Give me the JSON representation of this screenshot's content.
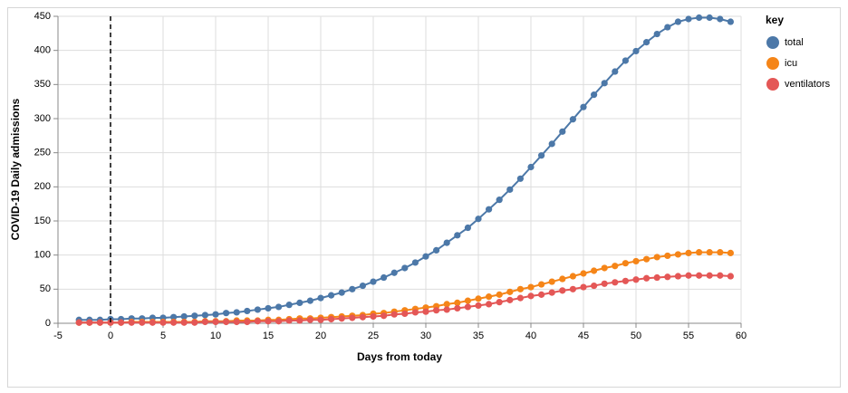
{
  "chart_data": {
    "type": "line",
    "x_label": "Days from today",
    "y_label": "COVID-19 Daily admissions",
    "legend_title": "key",
    "x": [
      -3,
      -2,
      -1,
      0,
      1,
      2,
      3,
      4,
      5,
      6,
      7,
      8,
      9,
      10,
      11,
      12,
      13,
      14,
      15,
      16,
      17,
      18,
      19,
      20,
      21,
      22,
      23,
      24,
      25,
      26,
      27,
      28,
      29,
      30,
      31,
      32,
      33,
      34,
      35,
      36,
      37,
      38,
      39,
      40,
      41,
      42,
      43,
      44,
      45,
      46,
      47,
      48,
      49,
      50,
      51,
      52,
      53,
      54,
      55,
      56,
      57,
      58,
      59
    ],
    "series": [
      {
        "name": "total",
        "color": "#4c78a8",
        "values": [
          5,
          5,
          5,
          6,
          6,
          7,
          7,
          8,
          8,
          9,
          10,
          11,
          12,
          13,
          15,
          16,
          18,
          20,
          22,
          24,
          27,
          30,
          33,
          37,
          41,
          45,
          50,
          55,
          61,
          67,
          74,
          81,
          89,
          98,
          107,
          118,
          129,
          140,
          153,
          167,
          181,
          196,
          212,
          229,
          246,
          263,
          281,
          299,
          317,
          335,
          352,
          369,
          385,
          399,
          412,
          424,
          434,
          442,
          446,
          448,
          448,
          446,
          442
        ]
      },
      {
        "name": "icu",
        "color": "#f58518",
        "values": [
          1,
          1,
          1,
          1,
          1,
          2,
          2,
          2,
          2,
          2,
          2,
          2,
          3,
          3,
          3,
          4,
          4,
          4,
          5,
          5,
          6,
          7,
          7,
          8,
          9,
          10,
          11,
          12,
          14,
          15,
          17,
          19,
          21,
          23,
          25,
          28,
          30,
          33,
          36,
          39,
          42,
          46,
          50,
          53,
          57,
          61,
          65,
          69,
          73,
          77,
          81,
          84,
          88,
          91,
          94,
          97,
          99,
          101,
          103,
          104,
          104,
          104,
          103
        ]
      },
      {
        "name": "ventilators",
        "color": "#e45756",
        "values": [
          1,
          1,
          1,
          1,
          1,
          1,
          1,
          1,
          1,
          1,
          1,
          1,
          2,
          2,
          2,
          2,
          2,
          3,
          3,
          3,
          4,
          4,
          5,
          5,
          6,
          7,
          8,
          9,
          10,
          11,
          13,
          14,
          16,
          17,
          19,
          20,
          22,
          24,
          26,
          28,
          31,
          34,
          37,
          40,
          42,
          45,
          48,
          50,
          53,
          55,
          58,
          60,
          62,
          64,
          66,
          67,
          68,
          69,
          70,
          70,
          70,
          70,
          69
        ]
      }
    ],
    "vline": 0,
    "xlim": [
      -5,
      60
    ],
    "xticks": [
      -5,
      0,
      5,
      10,
      15,
      20,
      25,
      30,
      35,
      40,
      45,
      50,
      55,
      60
    ],
    "ylim": [
      0,
      450
    ],
    "yticks": [
      0,
      50,
      100,
      150,
      200,
      250,
      300,
      350,
      400,
      450
    ],
    "grid": true,
    "legend": "right"
  }
}
